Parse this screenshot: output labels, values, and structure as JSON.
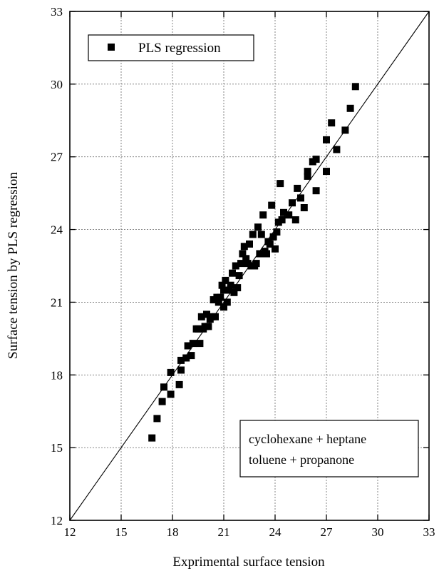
{
  "chart_data": {
    "type": "scatter",
    "xlabel": "Exprimental surface tension",
    "ylabel": "Surface tension by PLS regression",
    "xlim": [
      12,
      33
    ],
    "ylim": [
      12,
      33
    ],
    "xticks": [
      12,
      15,
      18,
      21,
      24,
      27,
      30,
      33
    ],
    "yticks": [
      12,
      15,
      18,
      21,
      24,
      27,
      30,
      33
    ],
    "grid": true,
    "legend": {
      "position": "top-left",
      "label": "PLS regression",
      "marker": "square"
    },
    "annotation": [
      "cyclohexane + heptane",
      "toluene + propanone"
    ],
    "reference_line": {
      "type": "y=x",
      "from": [
        12,
        12
      ],
      "to": [
        33,
        33
      ]
    },
    "series": [
      {
        "name": "PLS regression",
        "color": "#000000",
        "marker": "square",
        "points": [
          [
            16.8,
            15.4
          ],
          [
            17.1,
            16.2
          ],
          [
            17.4,
            16.9
          ],
          [
            17.5,
            17.5
          ],
          [
            17.9,
            17.2
          ],
          [
            17.9,
            18.1
          ],
          [
            18.4,
            17.6
          ],
          [
            18.5,
            18.2
          ],
          [
            18.5,
            18.6
          ],
          [
            18.8,
            18.7
          ],
          [
            18.9,
            19.2
          ],
          [
            19.1,
            18.8
          ],
          [
            19.2,
            19.3
          ],
          [
            19.4,
            19.9
          ],
          [
            19.5,
            19.9
          ],
          [
            19.6,
            19.3
          ],
          [
            19.7,
            20.4
          ],
          [
            19.8,
            19.9
          ],
          [
            19.9,
            20.0
          ],
          [
            20.0,
            20.5
          ],
          [
            20.1,
            20.0
          ],
          [
            20.2,
            20.3
          ],
          [
            20.3,
            20.4
          ],
          [
            20.4,
            21.1
          ],
          [
            20.5,
            20.4
          ],
          [
            20.6,
            21.2
          ],
          [
            20.7,
            21.0
          ],
          [
            20.8,
            21.2
          ],
          [
            20.9,
            21.7
          ],
          [
            21.0,
            20.8
          ],
          [
            21.0,
            21.5
          ],
          [
            21.1,
            21.9
          ],
          [
            21.2,
            21.0
          ],
          [
            21.3,
            21.5
          ],
          [
            21.4,
            21.7
          ],
          [
            21.5,
            22.2
          ],
          [
            21.6,
            21.4
          ],
          [
            21.7,
            22.5
          ],
          [
            21.8,
            21.6
          ],
          [
            21.9,
            22.1
          ],
          [
            22.0,
            22.6
          ],
          [
            22.1,
            23.0
          ],
          [
            22.2,
            23.3
          ],
          [
            22.3,
            22.8
          ],
          [
            22.4,
            22.6
          ],
          [
            22.5,
            23.4
          ],
          [
            22.6,
            22.5
          ],
          [
            22.7,
            23.8
          ],
          [
            22.8,
            22.5
          ],
          [
            22.9,
            22.6
          ],
          [
            23.0,
            24.1
          ],
          [
            23.1,
            23.0
          ],
          [
            23.2,
            23.8
          ],
          [
            23.3,
            24.6
          ],
          [
            23.4,
            23.1
          ],
          [
            23.5,
            23.0
          ],
          [
            23.6,
            23.5
          ],
          [
            23.7,
            23.4
          ],
          [
            23.8,
            25.0
          ],
          [
            23.9,
            23.7
          ],
          [
            24.0,
            23.2
          ],
          [
            24.1,
            23.9
          ],
          [
            24.2,
            24.3
          ],
          [
            24.3,
            25.9
          ],
          [
            24.4,
            24.4
          ],
          [
            24.5,
            24.7
          ],
          [
            24.8,
            24.6
          ],
          [
            25.0,
            25.1
          ],
          [
            25.2,
            24.4
          ],
          [
            25.3,
            25.7
          ],
          [
            25.5,
            25.3
          ],
          [
            25.7,
            24.9
          ],
          [
            25.9,
            26.2
          ],
          [
            25.9,
            26.4
          ],
          [
            26.2,
            26.8
          ],
          [
            26.4,
            25.6
          ],
          [
            26.4,
            26.9
          ],
          [
            27.0,
            26.4
          ],
          [
            27.0,
            27.7
          ],
          [
            27.3,
            28.4
          ],
          [
            27.6,
            27.3
          ],
          [
            28.1,
            28.1
          ],
          [
            28.4,
            29.0
          ],
          [
            28.7,
            29.9
          ]
        ]
      }
    ]
  }
}
